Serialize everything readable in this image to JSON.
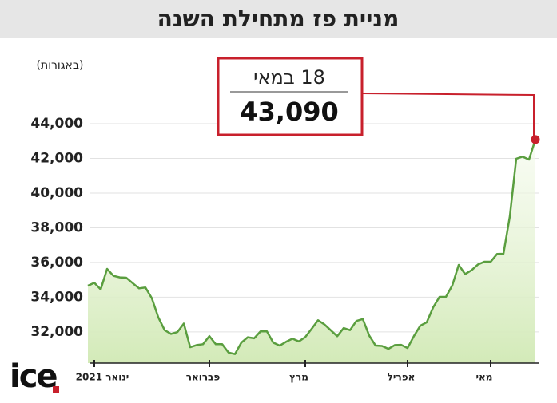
{
  "chart_data": {
    "type": "line",
    "title": "מניית פז מתחילת השנה",
    "unit_label": "(באגורות)",
    "categories": [
      null,
      "ינואר 2021",
      null,
      null,
      null,
      null,
      null,
      null,
      null,
      null,
      null,
      null,
      null,
      null,
      null,
      null,
      null,
      null,
      null,
      "פברואר",
      null,
      null,
      null,
      null,
      null,
      null,
      null,
      null,
      null,
      null,
      null,
      null,
      null,
      null,
      "מרץ",
      null,
      null,
      null,
      null,
      null,
      null,
      null,
      null,
      null,
      null,
      null,
      null,
      null,
      null,
      null,
      "אפריל",
      null,
      null,
      null,
      null,
      null,
      null,
      null,
      null,
      null,
      null,
      null,
      null,
      "מאי",
      null,
      null,
      null,
      null,
      null,
      null,
      null
    ],
    "series": [
      {
        "name": "פז",
        "color": "#5a9e3f",
        "values": [
          34660,
          34830,
          34450,
          35630,
          35230,
          35140,
          35120,
          34810,
          34510,
          34560,
          33940,
          32850,
          32100,
          31880,
          31990,
          32480,
          31120,
          31240,
          31290,
          31760,
          31290,
          31290,
          30810,
          30720,
          31380,
          31690,
          31630,
          32030,
          32030,
          31380,
          31210,
          31430,
          31610,
          31450,
          31700,
          32180,
          32670,
          32430,
          32090,
          31750,
          32220,
          32100,
          32630,
          32740,
          31790,
          31210,
          31190,
          31020,
          31240,
          31250,
          31070,
          31760,
          32360,
          32550,
          33410,
          34020,
          34020,
          34680,
          35860,
          35330,
          35550,
          35880,
          36040,
          36040,
          36490,
          36500,
          38660,
          41980,
          42100,
          41930,
          43090
        ]
      }
    ],
    "ylim": [
      30200,
      46900
    ],
    "yticks": [
      {
        "value": 32000,
        "label": "32,000"
      },
      {
        "value": 34000,
        "label": "34,000"
      },
      {
        "value": 36000,
        "label": "36,000"
      },
      {
        "value": 38000,
        "label": "38,000"
      },
      {
        "value": 40000,
        "label": "40,000"
      },
      {
        "value": 42000,
        "label": "42,000"
      },
      {
        "value": 44000,
        "label": "44,000"
      }
    ],
    "grid": true,
    "annotation": {
      "date": "18 במאי",
      "value_label": "43,090",
      "color": "#c8202c"
    },
    "logo": "ice"
  }
}
